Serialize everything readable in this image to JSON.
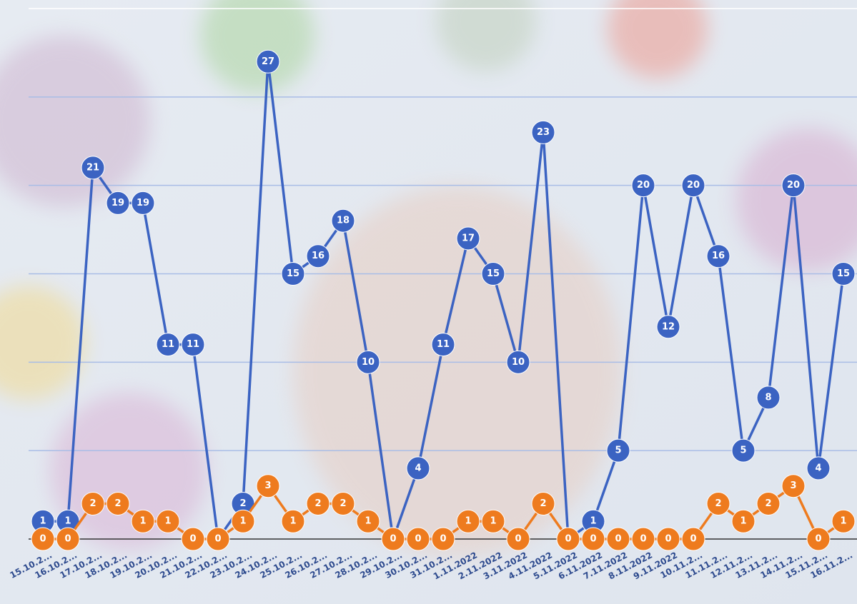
{
  "chart_data": {
    "type": "line",
    "categories": [
      "15.10.2...",
      "16.10.2...",
      "17.10.2...",
      "18.10.2...",
      "19.10.2...",
      "20.10.2...",
      "21.10.2...",
      "22.10.2...",
      "23.10.2...",
      "24.10.2...",
      "25.10.2...",
      "26.10.2...",
      "27.10.2...",
      "28.10.2...",
      "29.10.2...",
      "30.10.2...",
      "31.10.2...",
      "1.11.2022",
      "2.11.2022",
      "3.11.2022",
      "4.11.2022",
      "5.11.2022",
      "6.11.2022",
      "7.11.2022",
      "8.11.2022",
      "9.11.2022",
      "10.11.2...",
      "11.11.2...",
      "12.11.2...",
      "13.11.2...",
      "14.11.2...",
      "15.11.2...",
      "16.11.2..."
    ],
    "series": [
      {
        "color": "#3b63c2",
        "values": [
          1,
          1,
          21,
          19,
          19,
          11,
          11,
          0,
          2,
          27,
          15,
          16,
          18,
          10,
          0,
          4,
          11,
          17,
          15,
          10,
          23,
          0,
          1,
          5,
          20,
          12,
          20,
          16,
          5,
          8,
          20,
          4,
          15
        ]
      },
      {
        "color": "#ee7b1e",
        "values": [
          0,
          0,
          2,
          2,
          1,
          1,
          0,
          0,
          1,
          3,
          1,
          2,
          2,
          1,
          0,
          0,
          0,
          1,
          1,
          0,
          2,
          0,
          0,
          0,
          0,
          0,
          0,
          2,
          1,
          2,
          3,
          0,
          1
        ]
      }
    ],
    "ylim": [
      0,
      30
    ],
    "grid_values": [
      5,
      10,
      15,
      20,
      25,
      30
    ],
    "grid": true
  }
}
